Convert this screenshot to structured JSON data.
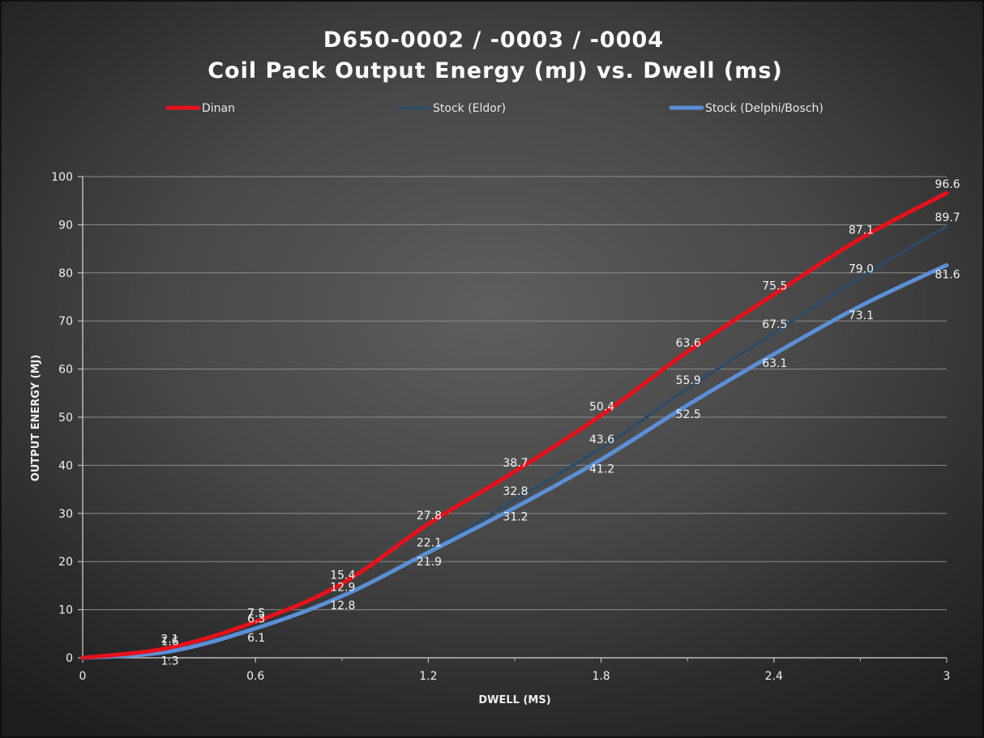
{
  "chart_data": {
    "type": "line",
    "title": "D650-0002 / -0003 / -0004",
    "subtitle": "Coil Pack Output Energy (mJ) vs. Dwell (ms)",
    "xlabel": "DWELL (MS)",
    "ylabel": "OUTPUT ENERGY (MJ)",
    "xlim": [
      0,
      3
    ],
    "ylim": [
      0,
      100
    ],
    "x_ticks": [
      0,
      0.6,
      1.2,
      1.8,
      2.4,
      3
    ],
    "x_tick_labels": [
      "0",
      "0.6",
      "1.2",
      "1.8",
      "2.4",
      "3"
    ],
    "y_ticks": [
      0,
      10,
      20,
      30,
      40,
      50,
      60,
      70,
      80,
      90,
      100
    ],
    "y_tick_labels": [
      "0",
      "10",
      "20",
      "30",
      "40",
      "50",
      "60",
      "70",
      "80",
      "90",
      "100"
    ],
    "grid": true,
    "legend_position": "top",
    "x": [
      0,
      0.3,
      0.6,
      0.9,
      1.2,
      1.5,
      1.8,
      2.1,
      2.4,
      2.7,
      3.0
    ],
    "series": [
      {
        "name": "Dinan",
        "color": "#e8101a",
        "values": [
          0,
          2.1,
          7.5,
          15.4,
          27.8,
          38.7,
          50.4,
          63.6,
          75.5,
          87.1,
          96.6
        ],
        "labels": [
          "",
          "2.1",
          "7.5",
          "15.4",
          "27.8",
          "38.7",
          "50.4",
          "63.6",
          "75.5",
          "87.1",
          "96.6"
        ]
      },
      {
        "name": "Stock (Eldor)",
        "color": "#2e4a66",
        "values": [
          0,
          1.6,
          6.3,
          12.9,
          22.1,
          32.8,
          43.6,
          55.9,
          67.5,
          79.0,
          89.7
        ],
        "labels": [
          "",
          "1.6",
          "6.3",
          "12.9",
          "22.1",
          "32.8",
          "43.6",
          "55.9",
          "67.5",
          "79.0",
          "89.7"
        ]
      },
      {
        "name": "Stock (Delphi/Bosch)",
        "color": "#5b8fd6",
        "values": [
          0,
          1.3,
          6.1,
          12.8,
          21.9,
          31.2,
          41.2,
          52.5,
          63.1,
          73.1,
          81.6
        ],
        "labels": [
          "",
          "1.3",
          "6.1",
          "12.8",
          "21.9",
          "31.2",
          "41.2",
          "52.5",
          "63.1",
          "73.1",
          "81.6"
        ]
      }
    ]
  }
}
